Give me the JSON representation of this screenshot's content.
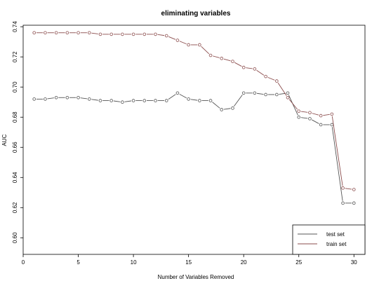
{
  "chart_data": {
    "type": "line",
    "title": "eliminating variables",
    "xlabel": "Number of Variables Removed",
    "ylabel": "AUC",
    "xlim": [
      0,
      31
    ],
    "ylim": [
      0.589,
      0.741
    ],
    "xticks": [
      0,
      5,
      10,
      15,
      20,
      25,
      30
    ],
    "xtick_labels": [
      "0",
      "5",
      "10",
      "15",
      "20",
      "25",
      "30"
    ],
    "yticks": [
      0.6,
      0.62,
      0.64,
      0.66,
      0.68,
      0.7,
      0.72,
      0.74
    ],
    "ytick_labels": [
      "0.60",
      "0.62",
      "0.64",
      "0.66",
      "0.68",
      "0.70",
      "0.72",
      "0.74"
    ],
    "grid": false,
    "legend_position": "bottom-right",
    "x": [
      1,
      2,
      3,
      4,
      5,
      6,
      7,
      8,
      9,
      10,
      11,
      12,
      13,
      14,
      15,
      16,
      17,
      18,
      19,
      20,
      21,
      22,
      23,
      24,
      25,
      26,
      27,
      28,
      29,
      30
    ],
    "series": [
      {
        "name": "test set",
        "color": "#555555",
        "values": [
          0.692,
          0.692,
          0.693,
          0.693,
          0.693,
          0.692,
          0.691,
          0.691,
          0.69,
          0.691,
          0.691,
          0.691,
          0.691,
          0.696,
          0.692,
          0.691,
          0.691,
          0.685,
          0.686,
          0.696,
          0.696,
          0.695,
          0.695,
          0.696,
          0.68,
          0.679,
          0.675,
          0.675,
          0.623,
          0.623
        ]
      },
      {
        "name": "train set",
        "color": "#8b4c4c",
        "values": [
          0.736,
          0.736,
          0.736,
          0.736,
          0.736,
          0.736,
          0.735,
          0.735,
          0.735,
          0.735,
          0.735,
          0.735,
          0.734,
          0.731,
          0.728,
          0.728,
          0.721,
          0.719,
          0.717,
          0.713,
          0.712,
          0.707,
          0.704,
          0.693,
          0.684,
          0.683,
          0.681,
          0.682,
          0.633,
          0.632
        ]
      }
    ]
  }
}
